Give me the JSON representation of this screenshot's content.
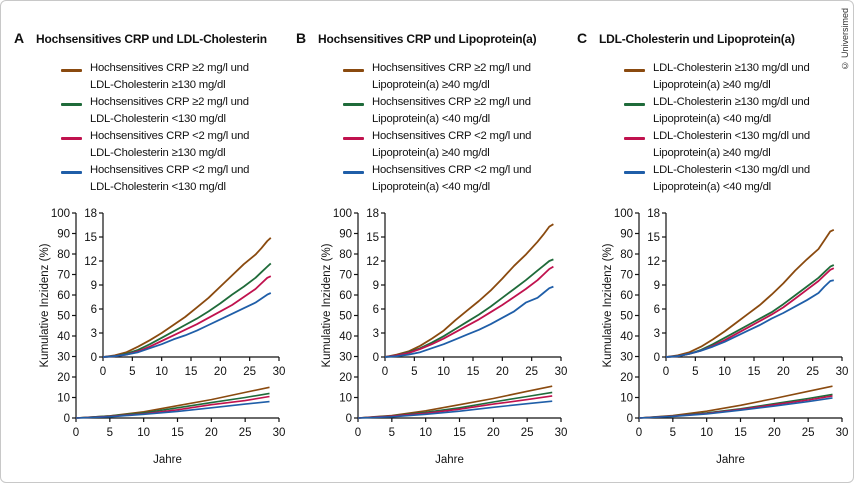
{
  "copyright": "© Universimed",
  "panels": [
    {
      "letter": "A",
      "title": "Hochsensitives CRP und LDL-Cholesterin",
      "legend": [
        {
          "line1": "Hochsensitives CRP ≥2 mg/l und",
          "line2": "LDL-Cholesterin ≥130 mg/dl",
          "color": "#8a4a0f"
        },
        {
          "line1": "Hochsensitives CRP ≥2 mg/l und",
          "line2": "LDL-Cholesterin <130 mg/dl",
          "color": "#1f6b3a"
        },
        {
          "line1": "Hochsensitives CRP <2 mg/l und",
          "line2": "LDL-Cholesterin ≥130 mg/dl",
          "color": "#c0124e"
        },
        {
          "line1": "Hochsensitives CRP <2 mg/l und",
          "line2": "LDL-Cholesterin <130 mg/dl",
          "color": "#1f5ea8"
        }
      ]
    },
    {
      "letter": "B",
      "title": "Hochsensitives CRP und Lipoprotein(a)",
      "legend": [
        {
          "line1": "Hochsensitives CRP ≥2 mg/l und",
          "line2": "Lipoprotein(a) ≥40 mg/dl",
          "color": "#8a4a0f"
        },
        {
          "line1": "Hochsensitives CRP ≥2 mg/l und",
          "line2": "Lipoprotein(a) <40 mg/dl",
          "color": "#1f6b3a"
        },
        {
          "line1": "Hochsensitives CRP <2 mg/l und",
          "line2": "Lipoprotein(a) ≥40 mg/dl",
          "color": "#c0124e"
        },
        {
          "line1": "Hochsensitives CRP <2 mg/l und",
          "line2": "Lipoprotein(a) <40 mg/dl",
          "color": "#1f5ea8"
        }
      ]
    },
    {
      "letter": "C",
      "title": "LDL-Cholesterin und Lipoprotein(a)",
      "legend": [
        {
          "line1": "LDL-Cholesterin ≥130 mg/dl und",
          "line2": "Lipoprotein(a) ≥40 mg/dl",
          "color": "#8a4a0f"
        },
        {
          "line1": "LDL-Cholesterin ≥130 mg/dl und",
          "line2": "Lipoprotein(a) <40 mg/dl",
          "color": "#1f6b3a"
        },
        {
          "line1": "LDL-Cholesterin <130 mg/dl und",
          "line2": "Lipoprotein(a) ≥40 mg/dl",
          "color": "#c0124e"
        },
        {
          "line1": "LDL-Cholesterin <130 mg/dl und",
          "line2": "Lipoprotein(a) <40 mg/dl",
          "color": "#1f5ea8"
        }
      ]
    }
  ],
  "chart_data": [
    {
      "type": "line",
      "title": "Hochsensitives CRP und LDL-Cholesterin",
      "xlabel": "Jahre",
      "ylabel": "Kumulative Inzidenz (%)",
      "xlim": [
        0,
        30
      ],
      "xticks": [
        0,
        5,
        10,
        15,
        20,
        25,
        30
      ],
      "outer_ylim": [
        0,
        100
      ],
      "outer_yticks": [
        0,
        10,
        20,
        30,
        40,
        50,
        60,
        70,
        80,
        90,
        100
      ],
      "inset_xlim": [
        0,
        30
      ],
      "inset_ylim": [
        0,
        18
      ],
      "inset_yticks": [
        0,
        3,
        6,
        9,
        12,
        15,
        18
      ],
      "main_series": [
        {
          "color": "#8a4a0f",
          "x": [
            0,
            2,
            4,
            6,
            8,
            10,
            12,
            14,
            16,
            18,
            20,
            22,
            24,
            26,
            27,
            28,
            28.6
          ],
          "y": [
            0,
            0.2,
            0.6,
            1.3,
            2.1,
            3.0,
            4.0,
            5.0,
            6.2,
            7.4,
            8.8,
            10.2,
            11.6,
            12.8,
            13.6,
            14.5,
            14.9
          ]
        },
        {
          "color": "#1f6b3a",
          "x": [
            0,
            2,
            4,
            6,
            8,
            10,
            12,
            14,
            16,
            18,
            20,
            22,
            24,
            26,
            27,
            28,
            28.6
          ],
          "y": [
            0,
            0.1,
            0.4,
            0.9,
            1.6,
            2.4,
            3.2,
            4.0,
            4.8,
            5.7,
            6.7,
            7.8,
            8.8,
            9.9,
            10.6,
            11.3,
            11.7
          ]
        },
        {
          "color": "#c0124e",
          "x": [
            0,
            2,
            4,
            6,
            8,
            10,
            12,
            14,
            16,
            18,
            20,
            22,
            24,
            26,
            27,
            28,
            28.6
          ],
          "y": [
            0,
            0.1,
            0.3,
            0.7,
            1.3,
            2.0,
            2.7,
            3.4,
            4.1,
            4.9,
            5.7,
            6.5,
            7.5,
            8.5,
            9.2,
            9.9,
            10.1
          ]
        },
        {
          "color": "#1f5ea8",
          "x": [
            0,
            2,
            4,
            6,
            8,
            10,
            12,
            14,
            16,
            18,
            20,
            22,
            24,
            26,
            27,
            28,
            28.6
          ],
          "y": [
            0,
            0.1,
            0.3,
            0.6,
            1.1,
            1.6,
            2.2,
            2.7,
            3.3,
            4.0,
            4.7,
            5.4,
            6.1,
            6.8,
            7.3,
            7.8,
            8.0
          ]
        }
      ],
      "full_scale_series": [
        {
          "color": "#8a4a0f",
          "x": [
            0,
            5,
            10,
            15,
            20,
            25,
            28.6
          ],
          "y": [
            0,
            1,
            3,
            6,
            9,
            12.5,
            15
          ]
        },
        {
          "color": "#1f6b3a",
          "x": [
            0,
            5,
            10,
            15,
            20,
            25,
            28.6
          ],
          "y": [
            0,
            1,
            2.5,
            5,
            7.5,
            10,
            12
          ]
        },
        {
          "color": "#c0124e",
          "x": [
            0,
            5,
            10,
            15,
            20,
            25,
            28.6
          ],
          "y": [
            0,
            0.8,
            2,
            4,
            6.5,
            8.5,
            10.5
          ]
        },
        {
          "color": "#1f5ea8",
          "x": [
            0,
            5,
            10,
            15,
            20,
            25,
            28.6
          ],
          "y": [
            0,
            0.6,
            1.8,
            3.2,
            5,
            6.8,
            8
          ]
        }
      ]
    },
    {
      "type": "line",
      "title": "Hochsensitives CRP und Lipoprotein(a)",
      "xlabel": "Jahre",
      "ylabel": "Kumulative Inzidenz (%)",
      "xlim": [
        0,
        30
      ],
      "xticks": [
        0,
        5,
        10,
        15,
        20,
        25,
        30
      ],
      "outer_ylim": [
        0,
        100
      ],
      "outer_yticks": [
        0,
        10,
        20,
        30,
        40,
        50,
        60,
        70,
        80,
        90,
        100
      ],
      "inset_xlim": [
        0,
        30
      ],
      "inset_ylim": [
        0,
        18
      ],
      "inset_yticks": [
        0,
        3,
        6,
        9,
        12,
        15,
        18
      ],
      "main_series": [
        {
          "color": "#8a4a0f",
          "x": [
            0,
            2,
            4,
            6,
            8,
            10,
            12,
            14,
            16,
            18,
            20,
            22,
            24,
            26,
            27,
            28,
            28.7
          ],
          "y": [
            0,
            0.3,
            0.7,
            1.4,
            2.3,
            3.3,
            4.6,
            5.8,
            7.0,
            8.3,
            9.8,
            11.4,
            12.8,
            14.4,
            15.3,
            16.3,
            16.6
          ]
        },
        {
          "color": "#1f6b3a",
          "x": [
            0,
            2,
            4,
            6,
            8,
            10,
            12,
            14,
            16,
            18,
            20,
            22,
            24,
            26,
            27,
            28,
            28.7
          ],
          "y": [
            0,
            0.2,
            0.6,
            1.1,
            1.8,
            2.6,
            3.5,
            4.4,
            5.3,
            6.3,
            7.4,
            8.5,
            9.6,
            10.8,
            11.4,
            12.0,
            12.2
          ]
        },
        {
          "color": "#c0124e",
          "x": [
            0,
            2,
            4,
            6,
            8,
            10,
            12,
            14,
            16,
            18,
            20,
            22,
            24,
            26,
            27,
            28,
            28.7
          ],
          "y": [
            0,
            0.2,
            0.5,
            1.0,
            1.6,
            2.3,
            3.1,
            3.9,
            4.7,
            5.6,
            6.5,
            7.5,
            8.5,
            9.6,
            10.3,
            11.0,
            11.3
          ]
        },
        {
          "color": "#1f5ea8",
          "x": [
            0,
            2,
            4,
            6,
            8,
            10,
            12,
            14,
            16,
            18,
            20,
            22,
            24,
            26,
            27,
            28,
            28.7
          ],
          "y": [
            0,
            0.1,
            0.3,
            0.6,
            1.1,
            1.6,
            2.2,
            2.8,
            3.4,
            4.1,
            4.9,
            5.7,
            6.8,
            7.4,
            8.0,
            8.6,
            8.8
          ]
        }
      ],
      "full_scale_series": [
        {
          "color": "#8a4a0f",
          "x": [
            0,
            5,
            10,
            15,
            20,
            25,
            28.7
          ],
          "y": [
            0,
            1.2,
            3.5,
            6.5,
            9.5,
            13,
            15.5
          ]
        },
        {
          "color": "#1f6b3a",
          "x": [
            0,
            5,
            10,
            15,
            20,
            25,
            28.7
          ],
          "y": [
            0,
            1,
            2.8,
            5,
            7.8,
            10.5,
            12.5
          ]
        },
        {
          "color": "#c0124e",
          "x": [
            0,
            5,
            10,
            15,
            20,
            25,
            28.7
          ],
          "y": [
            0,
            0.9,
            2.3,
            4.3,
            6.8,
            9,
            10.8
          ]
        },
        {
          "color": "#1f5ea8",
          "x": [
            0,
            5,
            10,
            15,
            20,
            25,
            28.7
          ],
          "y": [
            0,
            0.6,
            1.8,
            3.3,
            5.2,
            7,
            8.2
          ]
        }
      ]
    },
    {
      "type": "line",
      "title": "LDL-Cholesterin und Lipoprotein(a)",
      "xlabel": "Jahre",
      "ylabel": "Kumulative Inzidenz (%)",
      "xlim": [
        0,
        30
      ],
      "xticks": [
        0,
        5,
        10,
        15,
        20,
        25,
        30
      ],
      "outer_ylim": [
        0,
        100
      ],
      "outer_yticks": [
        0,
        10,
        20,
        30,
        40,
        50,
        60,
        70,
        80,
        90,
        100
      ],
      "inset_xlim": [
        0,
        30
      ],
      "inset_ylim": [
        0,
        18
      ],
      "inset_yticks": [
        0,
        3,
        6,
        9,
        12,
        15,
        18
      ],
      "main_series": [
        {
          "color": "#8a4a0f",
          "x": [
            0,
            2,
            4,
            6,
            8,
            10,
            12,
            14,
            16,
            18,
            20,
            22,
            24,
            26,
            27,
            28,
            28.6
          ],
          "y": [
            0,
            0.2,
            0.6,
            1.3,
            2.2,
            3.2,
            4.3,
            5.4,
            6.5,
            7.8,
            9.2,
            10.8,
            12.2,
            13.5,
            14.6,
            15.7,
            15.9
          ]
        },
        {
          "color": "#1f6b3a",
          "x": [
            0,
            2,
            4,
            6,
            8,
            10,
            12,
            14,
            16,
            18,
            20,
            22,
            24,
            26,
            27,
            28,
            28.6
          ],
          "y": [
            0,
            0.1,
            0.4,
            0.9,
            1.6,
            2.4,
            3.2,
            4.0,
            4.8,
            5.6,
            6.6,
            7.7,
            8.8,
            9.9,
            10.6,
            11.3,
            11.5
          ]
        },
        {
          "color": "#c0124e",
          "x": [
            0,
            2,
            4,
            6,
            8,
            10,
            12,
            14,
            16,
            18,
            20,
            22,
            24,
            26,
            27,
            28,
            28.6
          ],
          "y": [
            0,
            0.1,
            0.4,
            0.8,
            1.4,
            2.1,
            2.9,
            3.7,
            4.5,
            5.3,
            6.2,
            7.3,
            8.4,
            9.5,
            10.2,
            10.9,
            11.1
          ]
        },
        {
          "color": "#1f5ea8",
          "x": [
            0,
            2,
            4,
            6,
            8,
            10,
            12,
            14,
            16,
            18,
            20,
            22,
            24,
            26,
            27,
            28,
            28.6
          ],
          "y": [
            0,
            0.1,
            0.4,
            0.8,
            1.3,
            1.9,
            2.6,
            3.3,
            4.0,
            4.8,
            5.5,
            6.3,
            7.1,
            8.0,
            8.8,
            9.5,
            9.6
          ]
        }
      ],
      "full_scale_series": [
        {
          "color": "#8a4a0f",
          "x": [
            0,
            5,
            10,
            15,
            20,
            25,
            28.6
          ],
          "y": [
            0,
            1.2,
            3.3,
            6.2,
            9.5,
            13,
            15.5
          ]
        },
        {
          "color": "#1f6b3a",
          "x": [
            0,
            5,
            10,
            15,
            20,
            25,
            28.6
          ],
          "y": [
            0,
            1,
            2.5,
            4.5,
            7,
            9.5,
            11.5
          ]
        },
        {
          "color": "#c0124e",
          "x": [
            0,
            5,
            10,
            15,
            20,
            25,
            28.6
          ],
          "y": [
            0,
            0.9,
            2.2,
            4.2,
            6.5,
            8.8,
            10.8
          ]
        },
        {
          "color": "#1f5ea8",
          "x": [
            0,
            5,
            10,
            15,
            20,
            25,
            28.6
          ],
          "y": [
            0,
            0.8,
            2,
            3.8,
            5.8,
            8,
            9.8
          ]
        }
      ]
    }
  ]
}
